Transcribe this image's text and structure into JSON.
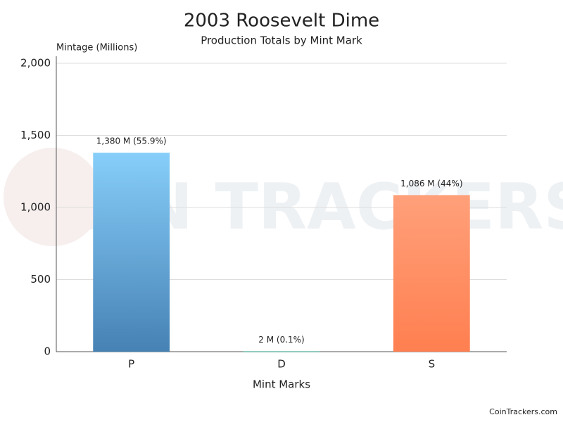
{
  "chart_data": {
    "type": "bar",
    "title": "2003 Roosevelt Dime",
    "subtitle": "Production Totals by Mint Mark",
    "y_label": "Mintage (Millions)",
    "x_label": "Mint Marks",
    "watermark": "COIN TRACKERS",
    "credit": "CoinTrackers.com",
    "categories": [
      "P",
      "D",
      "S"
    ],
    "values": [
      1380,
      2,
      1086
    ],
    "value_labels": [
      "1,380 M (55.9%)",
      "2 M (0.1%)",
      "1,086 M (44%)"
    ],
    "colors": [
      [
        "#87cefa",
        "#4682b4"
      ],
      [
        "#20b2aa",
        "#2e8b57"
      ],
      [
        "#ffa07a",
        "#ff7f50"
      ]
    ],
    "ylim": [
      0,
      2000
    ],
    "yticks": [
      0,
      500,
      {
        "value": 1000,
        "label": "1,000"
      },
      {
        "value": 1500,
        "label": "1,500"
      },
      {
        "value": 2000,
        "label": "2,000"
      }
    ],
    "grid": true
  }
}
